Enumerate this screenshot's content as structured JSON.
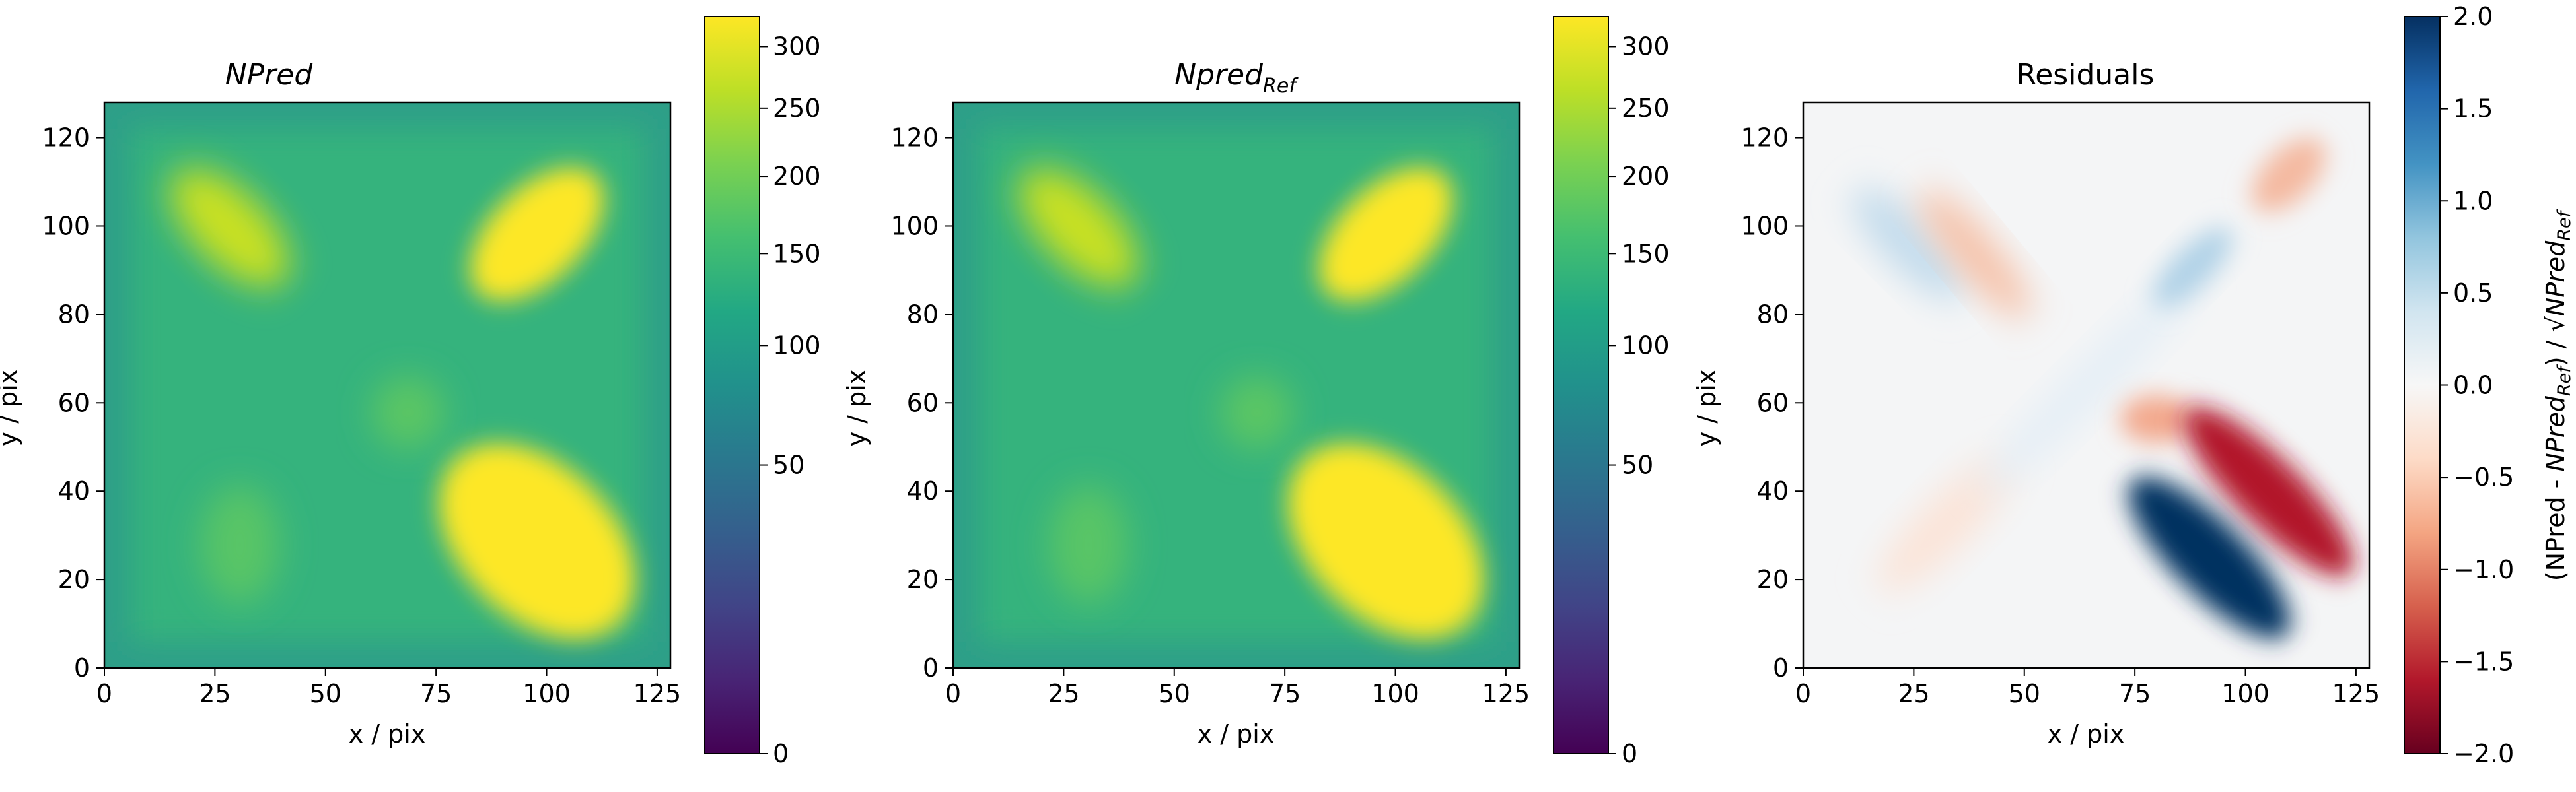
{
  "chart_data": [
    {
      "type": "heatmap",
      "title": "NPred",
      "xlabel": "x / pix",
      "ylabel": "y / pix",
      "xlim": [
        0,
        128
      ],
      "ylim": [
        0,
        128
      ],
      "xticks": [
        0,
        25,
        50,
        75,
        100,
        125
      ],
      "yticks": [
        0,
        20,
        40,
        60,
        80,
        100,
        120
      ],
      "colormap": "viridis",
      "color_scale": "sqrt",
      "clim": [
        0,
        326
      ],
      "colorbar_ticks": [
        0,
        50,
        100,
        150,
        200,
        250,
        300
      ],
      "background_level": 118,
      "features": [
        {
          "shape": "elongated blob",
          "x_range": [
            15,
            40
          ],
          "y_range": [
            88,
            110
          ],
          "level": 175
        },
        {
          "shape": "elongated blob",
          "x_range": [
            85,
            112
          ],
          "y_range": [
            85,
            112
          ],
          "level": 326
        },
        {
          "shape": "elongated blob",
          "x_range": [
            80,
            118
          ],
          "y_range": [
            8,
            48
          ],
          "level": 326
        },
        {
          "shape": "faint blob",
          "x_range": [
            18,
            40
          ],
          "y_range": [
            18,
            38
          ],
          "level": 145
        },
        {
          "shape": "faint blob",
          "x_range": [
            62,
            76
          ],
          "y_range": [
            52,
            64
          ],
          "level": 145
        }
      ]
    },
    {
      "type": "heatmap",
      "title": "Npred",
      "title_subscript": "Ref",
      "xlabel": "x / pix",
      "ylabel": "y / pix",
      "xlim": [
        0,
        128
      ],
      "ylim": [
        0,
        128
      ],
      "xticks": [
        0,
        25,
        50,
        75,
        100,
        125
      ],
      "yticks": [
        0,
        20,
        40,
        60,
        80,
        100,
        120
      ],
      "colormap": "viridis",
      "color_scale": "sqrt",
      "clim": [
        0,
        326
      ],
      "colorbar_ticks": [
        0,
        50,
        100,
        150,
        200,
        250,
        300
      ],
      "background_level": 118,
      "features": [
        {
          "shape": "elongated blob",
          "x_range": [
            15,
            40
          ],
          "y_range": [
            88,
            110
          ],
          "level": 175
        },
        {
          "shape": "elongated blob",
          "x_range": [
            85,
            112
          ],
          "y_range": [
            85,
            112
          ],
          "level": 326
        },
        {
          "shape": "elongated blob",
          "x_range": [
            80,
            118
          ],
          "y_range": [
            8,
            48
          ],
          "level": 326
        },
        {
          "shape": "faint blob",
          "x_range": [
            18,
            40
          ],
          "y_range": [
            18,
            38
          ],
          "level": 145
        },
        {
          "shape": "faint blob",
          "x_range": [
            62,
            76
          ],
          "y_range": [
            52,
            64
          ],
          "level": 145
        }
      ]
    },
    {
      "type": "heatmap",
      "title": "Residuals",
      "xlabel": "x / pix",
      "ylabel": "y / pix",
      "xlim": [
        0,
        128
      ],
      "ylim": [
        0,
        128
      ],
      "xticks": [
        0,
        25,
        50,
        75,
        100,
        125
      ],
      "yticks": [
        0,
        20,
        40,
        60,
        80,
        100,
        120
      ],
      "colormap": "RdBu",
      "clim": [
        -2.0,
        2.0
      ],
      "colorbar_ticks": [
        "2.0",
        "1.5",
        "1.0",
        "0.5",
        "0.0",
        "−0.5",
        "−1.0",
        "−1.5",
        "−2.0"
      ],
      "colorbar_label_parts": [
        "(NPred - ",
        "NPred",
        "Ref",
        ") / √",
        "NPred",
        "Ref"
      ],
      "features": [
        {
          "sign": "positive",
          "x_range": [
            82,
            108
          ],
          "y_range": [
            10,
            38
          ],
          "level": 2.0
        },
        {
          "sign": "negative",
          "x_range": [
            92,
            122
          ],
          "y_range": [
            18,
            46
          ],
          "level": -2.0
        },
        {
          "sign": "positive",
          "x_range": [
            10,
            40
          ],
          "y_range": [
            82,
            106
          ],
          "level": 0.3
        },
        {
          "sign": "negative",
          "x_range": [
            28,
            52
          ],
          "y_range": [
            78,
            106
          ],
          "level": -0.4
        },
        {
          "sign": "positive",
          "x_range": [
            80,
            98
          ],
          "y_range": [
            84,
            106
          ],
          "level": 0.6
        },
        {
          "sign": "negative",
          "x_range": [
            100,
            122
          ],
          "y_range": [
            100,
            118
          ],
          "level": -0.4
        },
        {
          "sign": "negative",
          "x_range": [
            68,
            82
          ],
          "y_range": [
            50,
            64
          ],
          "level": -0.6
        },
        {
          "sign": "negative",
          "x_range": [
            14,
            48
          ],
          "y_range": [
            14,
            44
          ],
          "level": -0.2
        }
      ]
    }
  ]
}
